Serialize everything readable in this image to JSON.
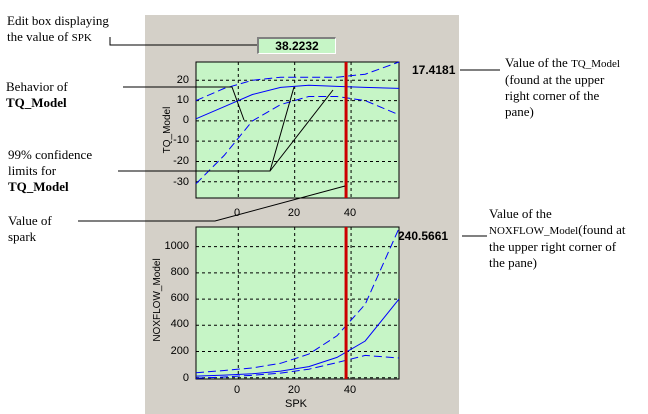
{
  "annotations": {
    "edit_box_line1": "Edit box displaying",
    "edit_box_line2_prefix": "the value of",
    "edit_box_line2_spk": "SPK",
    "behavior_line1": "Behavior of",
    "behavior_line2": "TQ_Model",
    "confidence_line1": "99% confidence",
    "confidence_line2": "limits for",
    "confidence_line3": "TQ_Model",
    "spark_line1": "Value of",
    "spark_line2": "spark",
    "tq_value_line1_prefix": "Value of the",
    "tq_value_line1_model": "TQ_Model",
    "tq_value_line2": "(found at the upper",
    "tq_value_line3": "right corner of the",
    "tq_value_line4": "pane)",
    "nox_value_line1": "Value of the",
    "nox_value_line2_model": "NOXFLOW_Model",
    "nox_value_line2_suffix": "(found at",
    "nox_value_line3": "the upper right corner of",
    "nox_value_line4": "the pane)"
  },
  "edit_box": {
    "value": "38.2232"
  },
  "tq_plot": {
    "value_label": "17.4181",
    "ylabel": "TQ_Model",
    "yticks": [
      "20",
      "10",
      "0",
      "-10",
      "-20",
      "-30"
    ],
    "xticks": [
      "0",
      "20",
      "40"
    ]
  },
  "nox_plot": {
    "value_label": "240.5661",
    "ylabel": "NOXFLOW_Model",
    "xlabel": "SPK",
    "yticks": [
      "1000",
      "800",
      "600",
      "400",
      "200",
      "0"
    ],
    "xticks": [
      "0",
      "20",
      "40"
    ]
  },
  "chart_data": [
    {
      "type": "line",
      "ylabel": "TQ_Model",
      "xlim": [
        -15,
        57
      ],
      "ylim": [
        -38,
        29
      ],
      "grid": true,
      "marker_x": 38.2232,
      "series": [
        {
          "x": [
            -15,
            -5,
            5,
            15,
            25,
            35,
            45,
            57
          ],
          "y": [
            1,
            7,
            13,
            16.5,
            17.5,
            17,
            16.5,
            16
          ]
        },
        {
          "x": [
            -15,
            -5,
            5,
            15,
            25,
            35,
            45,
            57
          ],
          "y": [
            10,
            16,
            20,
            21.5,
            21.5,
            21.5,
            23,
            29
          ]
        },
        {
          "x": [
            -15,
            -5,
            5,
            15,
            25,
            35,
            45,
            57
          ],
          "y": [
            -31,
            -17,
            0,
            8,
            12,
            12,
            10,
            3
          ]
        }
      ]
    },
    {
      "type": "line",
      "ylabel": "NOXFLOW_Model",
      "xlabel": "SPK",
      "xlim": [
        -15,
        57
      ],
      "ylim": [
        -10,
        1150
      ],
      "grid": true,
      "marker_x": 38.2232,
      "series": [
        {
          "x": [
            -15,
            -5,
            5,
            15,
            25,
            35,
            45,
            57
          ],
          "y": [
            12,
            20,
            30,
            50,
            85,
            155,
            280,
            600
          ]
        },
        {
          "x": [
            -15,
            -5,
            5,
            15,
            25,
            35,
            45,
            57
          ],
          "y": [
            38,
            55,
            75,
            110,
            180,
            320,
            560,
            1140
          ]
        },
        {
          "x": [
            -15,
            -5,
            5,
            15,
            25,
            35,
            45,
            57
          ],
          "y": [
            -5,
            5,
            18,
            35,
            65,
            115,
            170,
            150
          ]
        }
      ]
    }
  ]
}
